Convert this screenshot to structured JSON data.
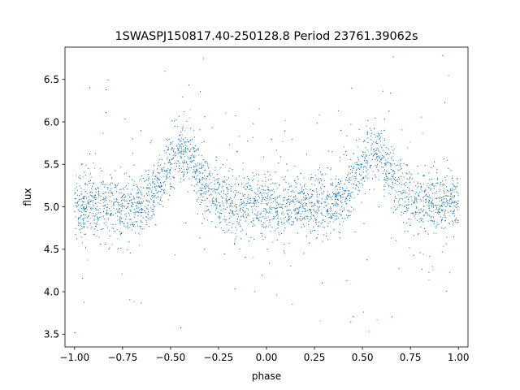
{
  "chart_data": {
    "type": "scatter",
    "title": "1SWASPJ150817.40-250128.8 Period 23761.39062s",
    "xlabel": "phase",
    "ylabel": "flux",
    "xlim": [
      -1.05,
      1.05
    ],
    "ylim": [
      3.35,
      6.88
    ],
    "x_ticks": [
      -1.0,
      -0.75,
      -0.5,
      -0.25,
      0.0,
      0.25,
      0.5,
      0.75,
      1.0
    ],
    "x_tick_labels": [
      "−1.00",
      "−0.75",
      "−0.50",
      "−0.25",
      "0.00",
      "0.25",
      "0.50",
      "0.75",
      "1.00"
    ],
    "y_ticks": [
      3.5,
      4.0,
      4.5,
      5.0,
      5.5,
      6.0,
      6.5
    ],
    "y_tick_labels": [
      "3.5",
      "4.0",
      "4.5",
      "5.0",
      "5.5",
      "6.0",
      "6.5"
    ],
    "grid": false,
    "legend": "none",
    "series": [
      {
        "x_range": [
          -1.0,
          1.0
        ],
        "color": "#1f77b4",
        "marker": "small dot",
        "baseline_flux": 5.05,
        "core_scatter": 0.17,
        "flux_min": 3.5,
        "flux_max": 6.8,
        "humps": [
          {
            "phase": -0.44,
            "peak_flux": 5.65
          },
          {
            "phase": 0.56,
            "peak_flux": 5.62
          }
        ]
      }
    ]
  }
}
